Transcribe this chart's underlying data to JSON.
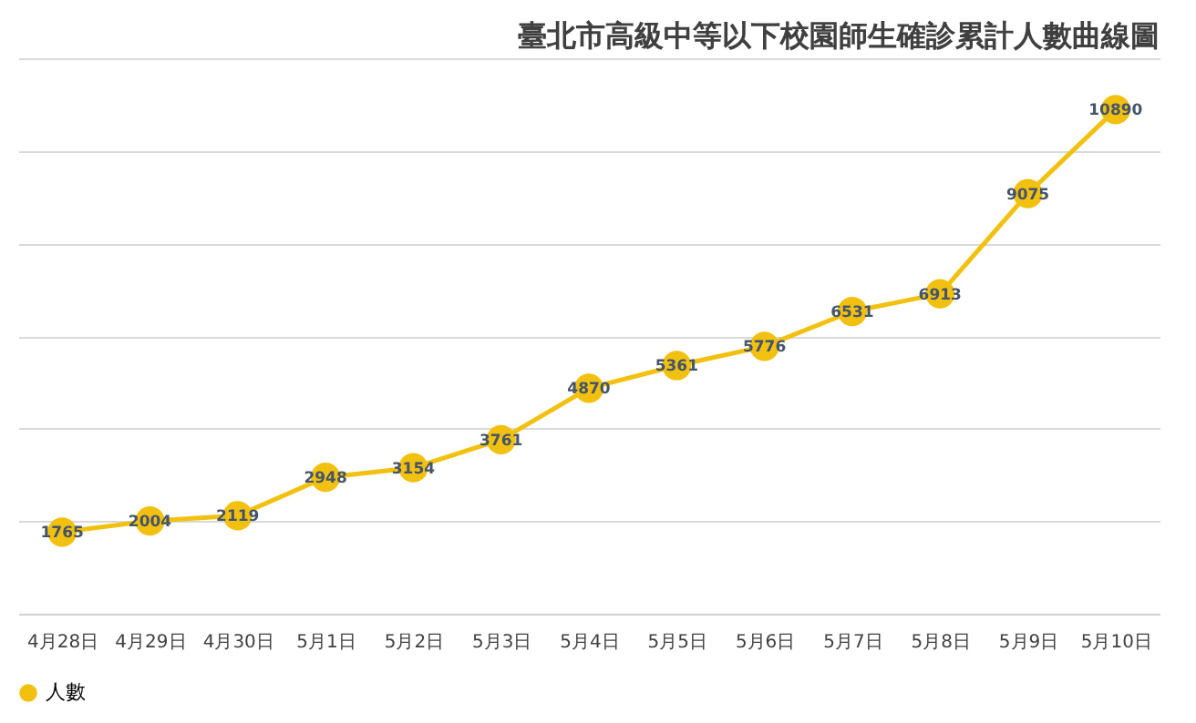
{
  "chart_data": {
    "type": "line",
    "title": "臺北市高級中等以下校園師生確診累計人數曲線圖",
    "categories": [
      "4月28日",
      "4月29日",
      "4月30日",
      "5月1日",
      "5月2日",
      "5月3日",
      "5月4日",
      "5月5日",
      "5月6日",
      "5月7日",
      "5月8日",
      "5月9日",
      "5月10日"
    ],
    "series": [
      {
        "name": "人數",
        "color": "#f2c10f",
        "values": [
          1765,
          2004,
          2119,
          2948,
          3154,
          3761,
          4870,
          5361,
          5776,
          6531,
          6913,
          9075,
          10890
        ]
      }
    ],
    "ylim": [
      0,
      12000
    ],
    "yticks": [
      {
        "value": 0,
        "label": null
      },
      {
        "value": 2000,
        "label": null
      },
      {
        "value": 4000,
        "label": null
      },
      {
        "value": 6000,
        "label": null
      },
      {
        "value": 8000,
        "label": null
      },
      {
        "value": 10000,
        "label": null
      },
      {
        "value": 12000,
        "label": null
      }
    ],
    "tick_labels": "x",
    "grid": "y",
    "legend": "bottom",
    "marker": "circle",
    "line_style": "solid",
    "data_labels": true
  }
}
